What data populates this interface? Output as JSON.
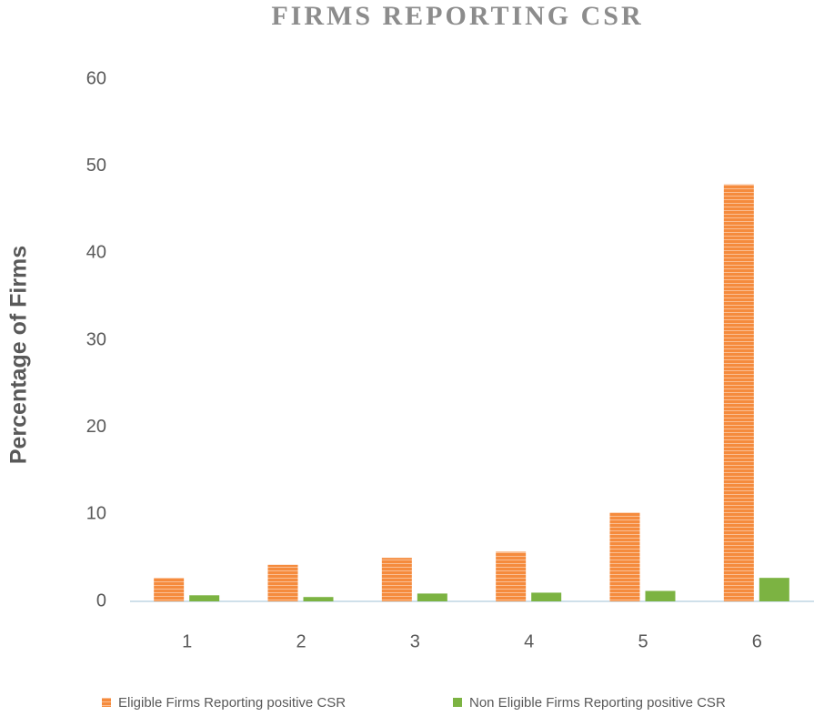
{
  "chart_data": {
    "type": "bar",
    "title": "FIRMS REPORTING CSR",
    "y_label": "Percentage of Firms",
    "categories": [
      "1",
      "2",
      "3",
      "4",
      "5",
      "6"
    ],
    "series": [
      {
        "name": "Eligible Firms Reporting positive CSR",
        "color": "#f58b3d",
        "values": [
          2.7,
          4.2,
          5.0,
          5.7,
          10.2,
          47.9
        ]
      },
      {
        "name": "Non Eligible Firms Reporting positive CSR",
        "color": "#7cb342",
        "values": [
          0.7,
          0.5,
          0.9,
          1.0,
          1.2,
          2.7
        ]
      }
    ],
    "ylim": [
      0,
      60
    ],
    "yticks": [
      0,
      10,
      20,
      30,
      40,
      50,
      60
    ],
    "grid": false
  }
}
